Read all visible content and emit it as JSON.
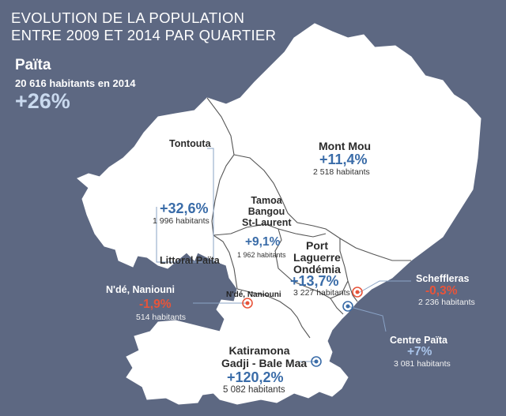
{
  "title": {
    "line1": "EVOLUTION DE LA POPULATION",
    "line2": "ENTRE 2009 ET 2014 PAR QUARTIER"
  },
  "city": {
    "name": "Païta",
    "population": "20 616 habitants en 2014",
    "change": "+26%"
  },
  "colors": {
    "background": "#5d6882",
    "land": "#ffffff",
    "border": "#555555",
    "positive": "#3a6ca8",
    "negative": "#e8543a"
  },
  "districts": {
    "tontouta": {
      "name": "Tontouta"
    },
    "littoral": {
      "name": "Littoral Païta",
      "change": "+32,6%",
      "population": "1 996 habitants"
    },
    "mont_mou": {
      "name": "Mont Mou",
      "change": "+11,4%",
      "population": "2 518 habitants"
    },
    "tamoa": {
      "name_line1": "Tamoa",
      "name_line2": "Bangou",
      "name_line3": "St-Laurent",
      "change": "+9,1%",
      "population": "1 962 habitants"
    },
    "port": {
      "name_line1": "Port",
      "name_line2": "Laguerre",
      "name_line3": "Ondémia",
      "change": "+13,7%",
      "population": "3 227 habitants"
    },
    "scheffleras": {
      "name": "Scheffleras",
      "change": "-0,3%",
      "population": "2 236 habitants"
    },
    "nde": {
      "name": "N'dé, Naniouni",
      "map_label": "N'dé, Naniouni",
      "change": "-1,9%",
      "population": "514 habitants"
    },
    "centre": {
      "name": "Centre Païta",
      "change": "+7%",
      "population": "3 081 habitants"
    },
    "katiramona": {
      "name_line1": "Katiramona",
      "name_line2": "Gadji - Bale Maa",
      "change": "+120,2%",
      "population": "5 082 habitants"
    }
  }
}
